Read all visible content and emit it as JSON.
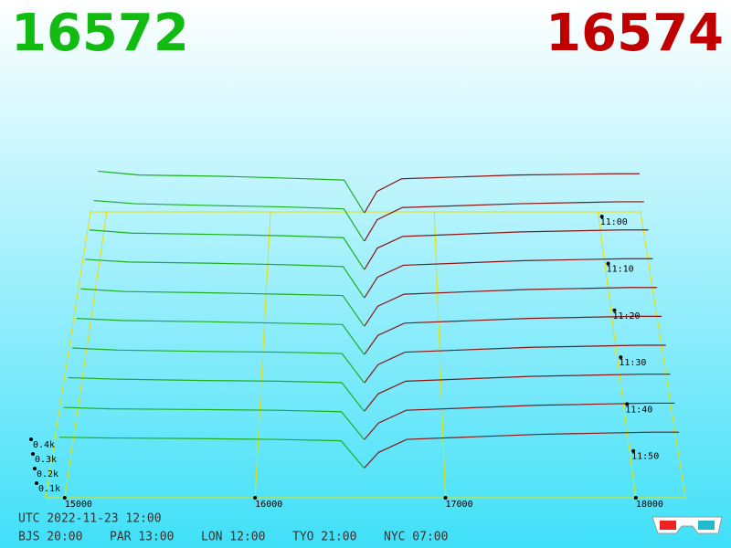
{
  "chart_data": {
    "type": "depth3d",
    "bid_price": 16572,
    "ask_price": 16574,
    "bid_color": "#1fae1f",
    "ask_color": "#8b1414",
    "xlim": [
      14900,
      18260
    ],
    "xticks": [
      15000,
      16000,
      17000,
      18000
    ],
    "zlim": [
      -1,
      60
    ],
    "zticks": [
      {
        "value": 0,
        "label": "11:00"
      },
      {
        "value": 10,
        "label": "11:10"
      },
      {
        "value": 20,
        "label": "11:20"
      },
      {
        "value": 30,
        "label": "11:30"
      },
      {
        "value": 40,
        "label": "11:40"
      },
      {
        "value": 50,
        "label": "11:50"
      }
    ],
    "yticks": [
      {
        "value": 100,
        "label": "0.1k"
      },
      {
        "value": 200,
        "label": "0.2k"
      },
      {
        "value": 300,
        "label": "0.3k"
      },
      {
        "value": 400,
        "label": "0.4k"
      }
    ],
    "bid_prices": [
      14950,
      15200,
      15700,
      16100,
      16450,
      16572
    ],
    "ask_prices": [
      16574,
      16650,
      16800,
      17500,
      18100,
      18250
    ],
    "snapshots": [
      {
        "t": 0,
        "bids": [
          360,
          330,
          320,
          305,
          290,
          30
        ],
        "asks": [
          30,
          200,
          300,
          330,
          340,
          340
        ]
      },
      {
        "t": 6,
        "bids": [
          345,
          320,
          305,
          295,
          280,
          28
        ],
        "asks": [
          28,
          195,
          290,
          320,
          335,
          335
        ]
      },
      {
        "t": 12,
        "bids": [
          330,
          305,
          295,
          285,
          270,
          26
        ],
        "asks": [
          26,
          190,
          280,
          315,
          330,
          330
        ]
      },
      {
        "t": 18,
        "bids": [
          315,
          295,
          285,
          275,
          260,
          24
        ],
        "asks": [
          24,
          180,
          270,
          305,
          320,
          320
        ]
      },
      {
        "t": 24,
        "bids": [
          300,
          280,
          270,
          260,
          250,
          22
        ],
        "asks": [
          22,
          170,
          260,
          295,
          310,
          310
        ]
      },
      {
        "t": 30,
        "bids": [
          285,
          270,
          260,
          250,
          240,
          20
        ],
        "asks": [
          20,
          160,
          250,
          285,
          300,
          300
        ]
      },
      {
        "t": 36,
        "bids": [
          270,
          255,
          245,
          240,
          230,
          18
        ],
        "asks": [
          18,
          150,
          240,
          275,
          290,
          290
        ]
      },
      {
        "t": 42,
        "bids": [
          255,
          245,
          235,
          230,
          220,
          16
        ],
        "asks": [
          16,
          140,
          230,
          265,
          280,
          280
        ]
      },
      {
        "t": 48,
        "bids": [
          240,
          230,
          225,
          220,
          210,
          14
        ],
        "asks": [
          14,
          130,
          220,
          255,
          270,
          270
        ]
      },
      {
        "t": 54,
        "bids": [
          225,
          220,
          215,
          210,
          200,
          12
        ],
        "asks": [
          12,
          120,
          210,
          245,
          260,
          260
        ]
      }
    ],
    "footer": {
      "utc": "UTC 2022-11-23 12:00",
      "zones": [
        "BJS 20:00",
        "PAR 13:00",
        "LON 12:00",
        "TYO 21:00",
        "NYC 07:00"
      ]
    }
  }
}
